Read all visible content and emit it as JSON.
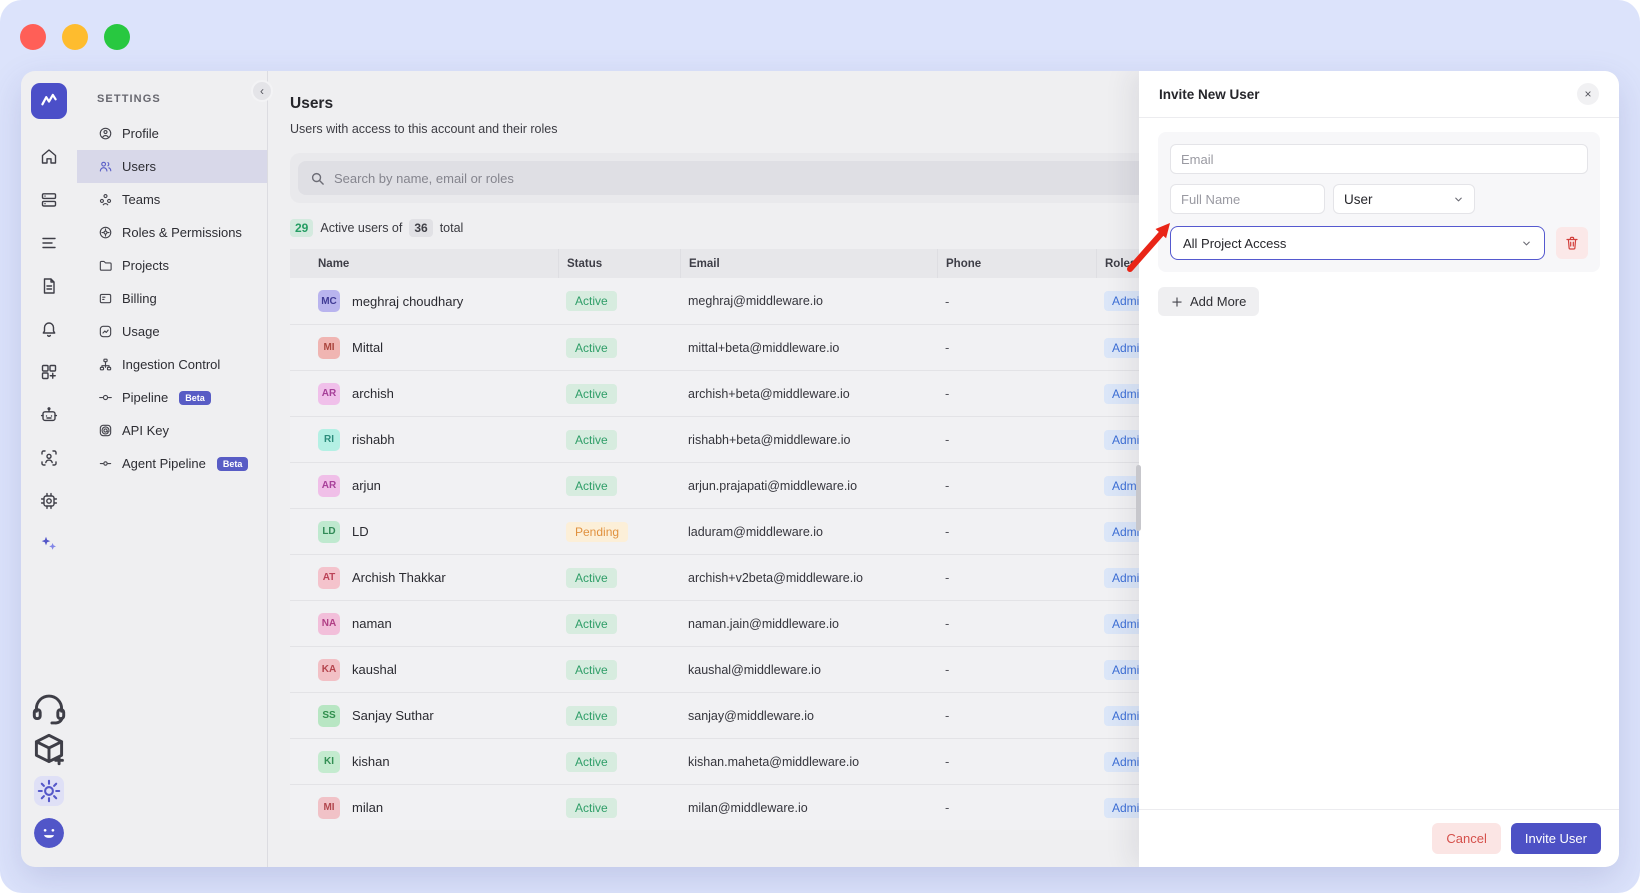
{
  "window_controls": {
    "close_color": "#ff5f57",
    "minimize_color": "#febc2e",
    "zoom_color": "#28c840"
  },
  "icon_rail": {
    "logo_icon": "middleware-logo",
    "primary_icons": [
      "home",
      "infrastructure",
      "logs",
      "reports",
      "alerts",
      "dashboards",
      "bot",
      "user-monitoring",
      "integrations",
      "ai-assistant"
    ],
    "footer_icons": [
      "support",
      "package",
      "settings",
      "user-avatar"
    ],
    "active_icon": "settings"
  },
  "settings_nav": {
    "section_label": "SETTINGS",
    "selected": "Users",
    "items": [
      {
        "icon": "profile",
        "label": "Profile"
      },
      {
        "icon": "users",
        "label": "Users"
      },
      {
        "icon": "teams",
        "label": "Teams"
      },
      {
        "icon": "roles",
        "label": "Roles & Permissions"
      },
      {
        "icon": "projects",
        "label": "Projects"
      },
      {
        "icon": "billing",
        "label": "Billing"
      },
      {
        "icon": "usage",
        "label": "Usage"
      },
      {
        "icon": "ingestion",
        "label": "Ingestion Control"
      },
      {
        "icon": "pipeline",
        "label": "Pipeline",
        "badge": "Beta"
      },
      {
        "icon": "api-key",
        "label": "API Key"
      },
      {
        "icon": "agent-pipeline",
        "label": "Agent Pipeline",
        "badge": "Beta"
      }
    ]
  },
  "main": {
    "title": "Users",
    "subtitle": "Users with access to this account and their roles",
    "search": {
      "placeholder": "Search by name, email or roles"
    },
    "summary": {
      "active_count": "29",
      "mid_text": "Active users of",
      "total_count": "36",
      "suffix_text": "total"
    },
    "table": {
      "headers": [
        "Name",
        "Status",
        "Email",
        "Phone",
        "Roles"
      ],
      "rows": [
        {
          "initials": "MC",
          "name": "meghraj choudhary",
          "avatar_bg": "#b9b4ee",
          "avatar_fg": "#413c96",
          "status": "Active",
          "email": "meghraj@middleware.io",
          "phone": "-",
          "role": "Admin"
        },
        {
          "initials": "MI",
          "name": "Mittal",
          "avatar_bg": "#f0b5b2",
          "avatar_fg": "#ab463e",
          "status": "Active",
          "email": "mittal+beta@middleware.io",
          "phone": "-",
          "role": "Admin"
        },
        {
          "initials": "AR",
          "name": "archish",
          "avatar_bg": "#f0c0ea",
          "avatar_fg": "#a53f98",
          "status": "Active",
          "email": "archish+beta@middleware.io",
          "phone": "-",
          "role": "Admin"
        },
        {
          "initials": "RI",
          "name": "rishabh",
          "avatar_bg": "#b4f0e4",
          "avatar_fg": "#2c8d7c",
          "status": "Active",
          "email": "rishabh+beta@middleware.io",
          "phone": "-",
          "role": "Admin"
        },
        {
          "initials": "AR",
          "name": "arjun",
          "avatar_bg": "#f0bfe8",
          "avatar_fg": "#a83f9a",
          "status": "Active",
          "email": "arjun.prajapati@middleware.io",
          "phone": "-",
          "role": "Admin"
        },
        {
          "initials": "LD",
          "name": "LD",
          "avatar_bg": "#bfe9cf",
          "avatar_fg": "#318a57",
          "status": "Pending",
          "email": "laduram@middleware.io",
          "phone": "-",
          "role": "Admin"
        },
        {
          "initials": "AT",
          "name": "Archish Thakkar",
          "avatar_bg": "#f4c3cc",
          "avatar_fg": "#bb4257",
          "status": "Active",
          "email": "archish+v2beta@middleware.io",
          "phone": "-",
          "role": "Admin"
        },
        {
          "initials": "NA",
          "name": "naman",
          "avatar_bg": "#f2bfda",
          "avatar_fg": "#b03f85",
          "status": "Active",
          "email": "naman.jain@middleware.io",
          "phone": "-",
          "role": "Admin"
        },
        {
          "initials": "KA",
          "name": "kaushal",
          "avatar_bg": "#f2c0c5",
          "avatar_fg": "#b5444d",
          "status": "Active",
          "email": "kaushal@middleware.io",
          "phone": "-",
          "role": "Admin"
        },
        {
          "initials": "SS",
          "name": "Sanjay Suthar",
          "avatar_bg": "#b8e6c3",
          "avatar_fg": "#2f8e4c",
          "status": "Active",
          "email": "sanjay@middleware.io",
          "phone": "-",
          "role": "Admin"
        },
        {
          "initials": "KI",
          "name": "kishan",
          "avatar_bg": "#c4ebcf",
          "avatar_fg": "#338f54",
          "status": "Active",
          "email": "kishan.maheta@middleware.io",
          "phone": "-",
          "role": "Admin"
        },
        {
          "initials": "MI",
          "name": "milan",
          "avatar_bg": "#f1c2c7",
          "avatar_fg": "#b2464d",
          "status": "Active",
          "email": "milan@middleware.io",
          "phone": "-",
          "role": "Admin"
        }
      ]
    },
    "status_styles": {
      "Active": {
        "bg": "#d7ecdf",
        "fg": "#2f9e68"
      },
      "Pending": {
        "bg": "#fcefd8",
        "fg": "#e0913f"
      }
    }
  },
  "drawer": {
    "title": "Invite New User",
    "close_label": "×",
    "fields": {
      "email_placeholder": "Email",
      "full_name_placeholder": "Full Name",
      "role_value": "User",
      "project_access_value": "All Project Access"
    },
    "add_more_label": "Add More",
    "footer": {
      "cancel_label": "Cancel",
      "invite_label": "Invite User"
    }
  },
  "colors": {
    "accent": "#4d51c5",
    "annotation_arrow": "#e92517",
    "role_badge_bg": "#dbe6f8",
    "role_badge_fg": "#3d6fd6"
  }
}
